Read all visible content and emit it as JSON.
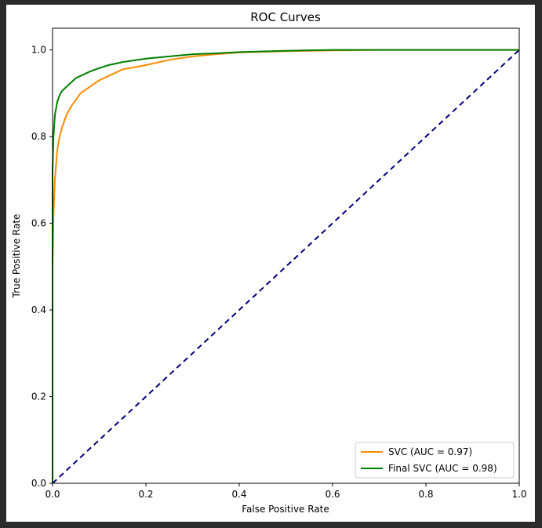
{
  "chart_data": {
    "type": "line",
    "title": "ROC Curves",
    "xlabel": "False Positive Rate",
    "ylabel": "True Positive Rate",
    "xlim": [
      0.0,
      1.0
    ],
    "ylim": [
      0.0,
      1.05
    ],
    "x_ticks": [
      "0.0",
      "0.2",
      "0.4",
      "0.6",
      "0.8",
      "1.0"
    ],
    "y_ticks": [
      "0.0",
      "0.2",
      "0.4",
      "0.6",
      "0.8",
      "1.0"
    ],
    "grid": false,
    "legend_position": "lower-right",
    "series": [
      {
        "name": "SVC (AUC = 0.97)",
        "color": "#ff8c00",
        "x": [
          0.0,
          0.0,
          0.002,
          0.005,
          0.01,
          0.015,
          0.02,
          0.03,
          0.04,
          0.05,
          0.06,
          0.08,
          0.1,
          0.12,
          0.15,
          0.2,
          0.25,
          0.3,
          0.35,
          0.4,
          0.5,
          0.6,
          0.7,
          0.8,
          0.9,
          1.0
        ],
        "y": [
          0.0,
          0.5,
          0.62,
          0.7,
          0.77,
          0.8,
          0.82,
          0.85,
          0.87,
          0.885,
          0.9,
          0.915,
          0.93,
          0.94,
          0.955,
          0.965,
          0.977,
          0.985,
          0.99,
          0.994,
          0.997,
          0.999,
          1.0,
          1.0,
          1.0,
          1.0
        ]
      },
      {
        "name": "Final SVC (AUC = 0.98)",
        "color": "#008000",
        "x": [
          0.0,
          0.0,
          0.002,
          0.005,
          0.01,
          0.015,
          0.02,
          0.03,
          0.04,
          0.05,
          0.06,
          0.08,
          0.1,
          0.12,
          0.15,
          0.2,
          0.25,
          0.3,
          0.35,
          0.4,
          0.5,
          0.6,
          0.7,
          0.8,
          0.9,
          1.0
        ],
        "y": [
          0.0,
          0.72,
          0.8,
          0.85,
          0.88,
          0.895,
          0.905,
          0.915,
          0.925,
          0.935,
          0.94,
          0.95,
          0.958,
          0.965,
          0.972,
          0.98,
          0.985,
          0.99,
          0.992,
          0.995,
          0.998,
          1.0,
          1.0,
          1.0,
          1.0,
          1.0
        ]
      },
      {
        "name": "",
        "color": "#000080",
        "dashed": true,
        "x": [
          0.0,
          1.0
        ],
        "y": [
          0.0,
          1.0
        ]
      }
    ]
  }
}
